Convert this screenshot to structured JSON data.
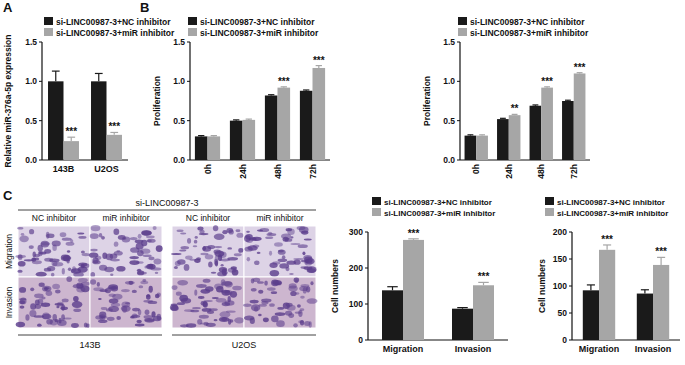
{
  "figure": {
    "panel_labels": [
      "A",
      "B",
      "C"
    ],
    "image_panel": {
      "title": "si-LINC00987-3",
      "columns": [
        "NC inhibitor",
        "miR inhibitor",
        "NC inhibitor",
        "miR inhibitor"
      ],
      "rows": [
        "Migration",
        "Invasion"
      ],
      "cell_lines": [
        "143B",
        "U2OS"
      ]
    }
  },
  "chart_data": [
    {
      "type": "bar",
      "y_label": "Relative miR-376a-5p expression",
      "categories": [
        "143B",
        "U2OS"
      ],
      "series": [
        {
          "name": "si-LINC00987-3+NC inhibitor",
          "color": "#1a1a1a",
          "values": [
            1.0,
            1.0
          ],
          "errors": [
            0.13,
            0.1
          ]
        },
        {
          "name": "si-LINC00987-3+miR inhibitor",
          "color": "#a6a6a6",
          "values": [
            0.24,
            0.32
          ],
          "errors": [
            0.05,
            0.03
          ],
          "significance": [
            "***",
            "***"
          ]
        }
      ],
      "ylim": [
        0,
        1.5
      ],
      "yticks": [
        {
          "value": 0,
          "label": "0.0"
        },
        0.5,
        {
          "value": 1,
          "label": "1.0"
        },
        1.5
      ],
      "grid": false,
      "legend": "top"
    },
    {
      "type": "bar",
      "y_label": "Proliferation",
      "categories": [
        "0h",
        "24h",
        "48h",
        "72h"
      ],
      "series": [
        {
          "name": "si-LINC00987-3+NC inhibitor",
          "color": "#1a1a1a",
          "values": [
            0.3,
            0.5,
            0.82,
            0.88
          ],
          "errors": [
            0.01,
            0.01,
            0.01,
            0.01
          ]
        },
        {
          "name": "si-LINC00987-3+miR inhibitor",
          "color": "#a6a6a6",
          "values": [
            0.3,
            0.51,
            0.92,
            1.17
          ],
          "errors": [
            0.01,
            0.01,
            0.01,
            0.03
          ],
          "significance": [
            null,
            null,
            "***",
            "***"
          ]
        }
      ],
      "ylim": [
        0,
        1.5
      ],
      "yticks": [
        {
          "value": 0,
          "label": "0.0"
        },
        0.5,
        {
          "value": 1,
          "label": "1.0"
        },
        1.5
      ],
      "grid": false,
      "legend": "top"
    },
    {
      "type": "bar",
      "y_label": "Proliferation",
      "categories": [
        "0h",
        "24h",
        "48h",
        "72h"
      ],
      "series": [
        {
          "name": "si-LINC00987-3+NC inhibitor",
          "color": "#1a1a1a",
          "values": [
            0.31,
            0.52,
            0.69,
            0.75
          ],
          "errors": [
            0.01,
            0.01,
            0.01,
            0.01
          ]
        },
        {
          "name": "si-LINC00987-3+miR inhibitor",
          "color": "#a6a6a6",
          "values": [
            0.31,
            0.57,
            0.92,
            1.1
          ],
          "errors": [
            0.01,
            0.01,
            0.01,
            0.01
          ],
          "significance": [
            null,
            "**",
            "***",
            "***"
          ]
        }
      ],
      "ylim": [
        0,
        1.5
      ],
      "yticks": [
        {
          "value": 0,
          "label": "0.0"
        },
        0.5,
        {
          "value": 1,
          "label": "1.0"
        },
        1.5
      ],
      "grid": false,
      "legend": "top"
    },
    {
      "type": "bar",
      "y_label": "Cell numbers",
      "categories": [
        "Migration",
        "Invasion"
      ],
      "series": [
        {
          "name": "si-LINC00987-3+NC inhibitor",
          "color": "#1a1a1a",
          "values": [
            138,
            87
          ],
          "errors": [
            10,
            3
          ]
        },
        {
          "name": "si-LINC00987-3+miR inhibitor",
          "color": "#a6a6a6",
          "values": [
            278,
            152
          ],
          "errors": [
            3,
            8
          ],
          "significance": [
            "***",
            "***"
          ]
        }
      ],
      "ylim": [
        0,
        300
      ],
      "yticks": [
        0,
        100,
        200,
        300
      ],
      "grid": false,
      "legend": "top"
    },
    {
      "type": "bar",
      "y_label": "Cell numbers",
      "categories": [
        "Migration",
        "Invasion"
      ],
      "series": [
        {
          "name": "si-LINC00987-3+NC inhibitor",
          "color": "#1a1a1a",
          "values": [
            92,
            86
          ],
          "errors": [
            10,
            7
          ]
        },
        {
          "name": "si-LINC00987-3+miR inhibitor",
          "color": "#a6a6a6",
          "values": [
            167,
            139
          ],
          "errors": [
            9,
            14
          ],
          "significance": [
            "***",
            "***"
          ]
        }
      ],
      "ylim": [
        0,
        200
      ],
      "yticks": [
        0,
        50,
        100,
        150,
        200
      ],
      "grid": false,
      "legend": "top"
    }
  ]
}
